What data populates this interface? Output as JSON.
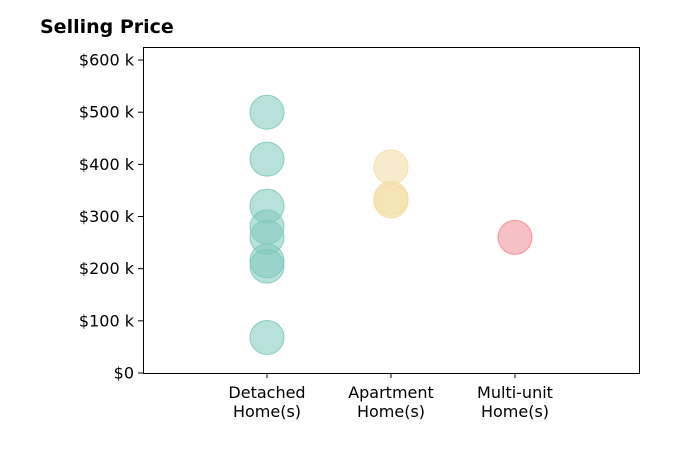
{
  "chart_data": {
    "type": "scatter",
    "title": "Selling Price",
    "xlabel": "",
    "ylabel": "",
    "categories": [
      {
        "lines": [
          "Detached",
          "Home(s)"
        ],
        "color": "#80c8bd"
      },
      {
        "lines": [
          "Apartment",
          "Home(s)"
        ],
        "color": "#f4dca4"
      },
      {
        "lines": [
          "Multi-unit",
          "Home(s)"
        ],
        "color": "#f08c96"
      }
    ],
    "xlim": [
      -1,
      3
    ],
    "ylim": [
      0,
      625
    ],
    "yticks": [
      {
        "value": 0,
        "label": "$0"
      },
      {
        "value": 100,
        "label": "$100 k"
      },
      {
        "value": 200,
        "label": "$200 k"
      },
      {
        "value": 300,
        "label": "$300 k"
      },
      {
        "value": 400,
        "label": "$400 k"
      },
      {
        "value": 500,
        "label": "$500 k"
      },
      {
        "value": 600,
        "label": "$600 k"
      }
    ],
    "grid": false,
    "series": [
      {
        "category_index": 0,
        "values": [
          500,
          410,
          320,
          280,
          260,
          215,
          205,
          68
        ]
      },
      {
        "category_index": 1,
        "values": [
          395,
          335,
          330
        ]
      },
      {
        "category_index": 2,
        "values": [
          260
        ]
      }
    ]
  }
}
